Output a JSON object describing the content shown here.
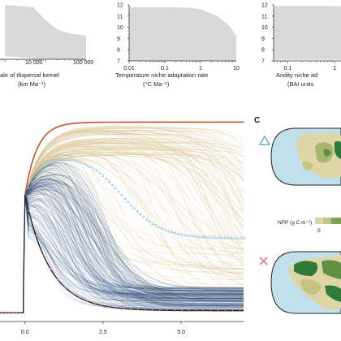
{
  "figure": {
    "panel_c_letter": "C",
    "npp_legend_label": "NPP (g C m⁻²)",
    "npp_legend_value": "0",
    "colors": {
      "band": "#d9d9d9",
      "ocean": "#bfe0ec",
      "land_low": "#dfd6a8",
      "land_high": "#2f7a3a",
      "upper_envelope": "#c8502a",
      "median_line": "#7fc4d8",
      "lower_envelope": "#222222",
      "tan_lines": "#d9c28e",
      "blue_lines": "#2b4a7a",
      "triangle": "#6ab4d6",
      "cross": "#e07b8a"
    },
    "markers": {
      "triangle": "triangle-icon",
      "cross": "cross-icon"
    }
  },
  "chart_data": [
    {
      "type": "area",
      "scale": "log-x",
      "xlabel": "ale of dispersal kernel\n(km Ma⁻¹)",
      "x_ticks": [
        "10 000",
        "100 000"
      ],
      "y_ticks": [],
      "band_upper": [
        [
          1000,
          12
        ],
        [
          5000,
          11.8
        ],
        [
          10000,
          10.6
        ],
        [
          20000,
          9.7
        ],
        [
          50000,
          9.3
        ],
        [
          100000,
          9.2
        ]
      ],
      "band_lower": [
        [
          1000,
          7.3
        ],
        [
          5000,
          7.1
        ],
        [
          10000,
          7.0
        ],
        [
          100000,
          7.0
        ]
      ]
    },
    {
      "type": "area",
      "scale": "log-x",
      "xlabel": "Temperature niche adaptation rate\n(°C Ma⁻¹)",
      "x_ticks": [
        "0.01",
        "0.1",
        "1",
        "10"
      ],
      "y_ticks": [
        "12",
        "11",
        "10",
        "9",
        "8",
        "7"
      ],
      "ylim": [
        7,
        12
      ],
      "band_upper": [
        [
          0.01,
          11.8
        ],
        [
          0.1,
          11.8
        ],
        [
          0.5,
          11.75
        ],
        [
          1,
          11.6
        ],
        [
          3,
          11.0
        ],
        [
          6,
          10.2
        ],
        [
          10,
          9.3
        ]
      ],
      "band_lower": [
        [
          0.01,
          7.0
        ],
        [
          10,
          7.0
        ]
      ]
    },
    {
      "type": "area",
      "scale": "log-x",
      "xlabel": "Aridity niche ad\n(BAI units",
      "x_ticks": [
        "0.1",
        "1"
      ],
      "y_ticks": [
        "12",
        "11",
        "10",
        "9",
        "8",
        "7"
      ],
      "ylim": [
        7,
        12
      ],
      "band_upper": [
        [
          0.05,
          11.9
        ],
        [
          1,
          11.9
        ],
        [
          3,
          11.8
        ]
      ],
      "band_lower": [
        [
          0.05,
          7.1
        ],
        [
          3,
          7.1
        ]
      ]
    },
    {
      "type": "line",
      "x_ticks": [
        "0.0",
        "2.5",
        "5.0"
      ],
      "xlim": [
        -0.8,
        7.0
      ],
      "ylim": [
        0,
        1
      ],
      "note_series": [
        "many simulated trajectories",
        "upper envelope",
        "median",
        "lower envelope"
      ]
    }
  ]
}
